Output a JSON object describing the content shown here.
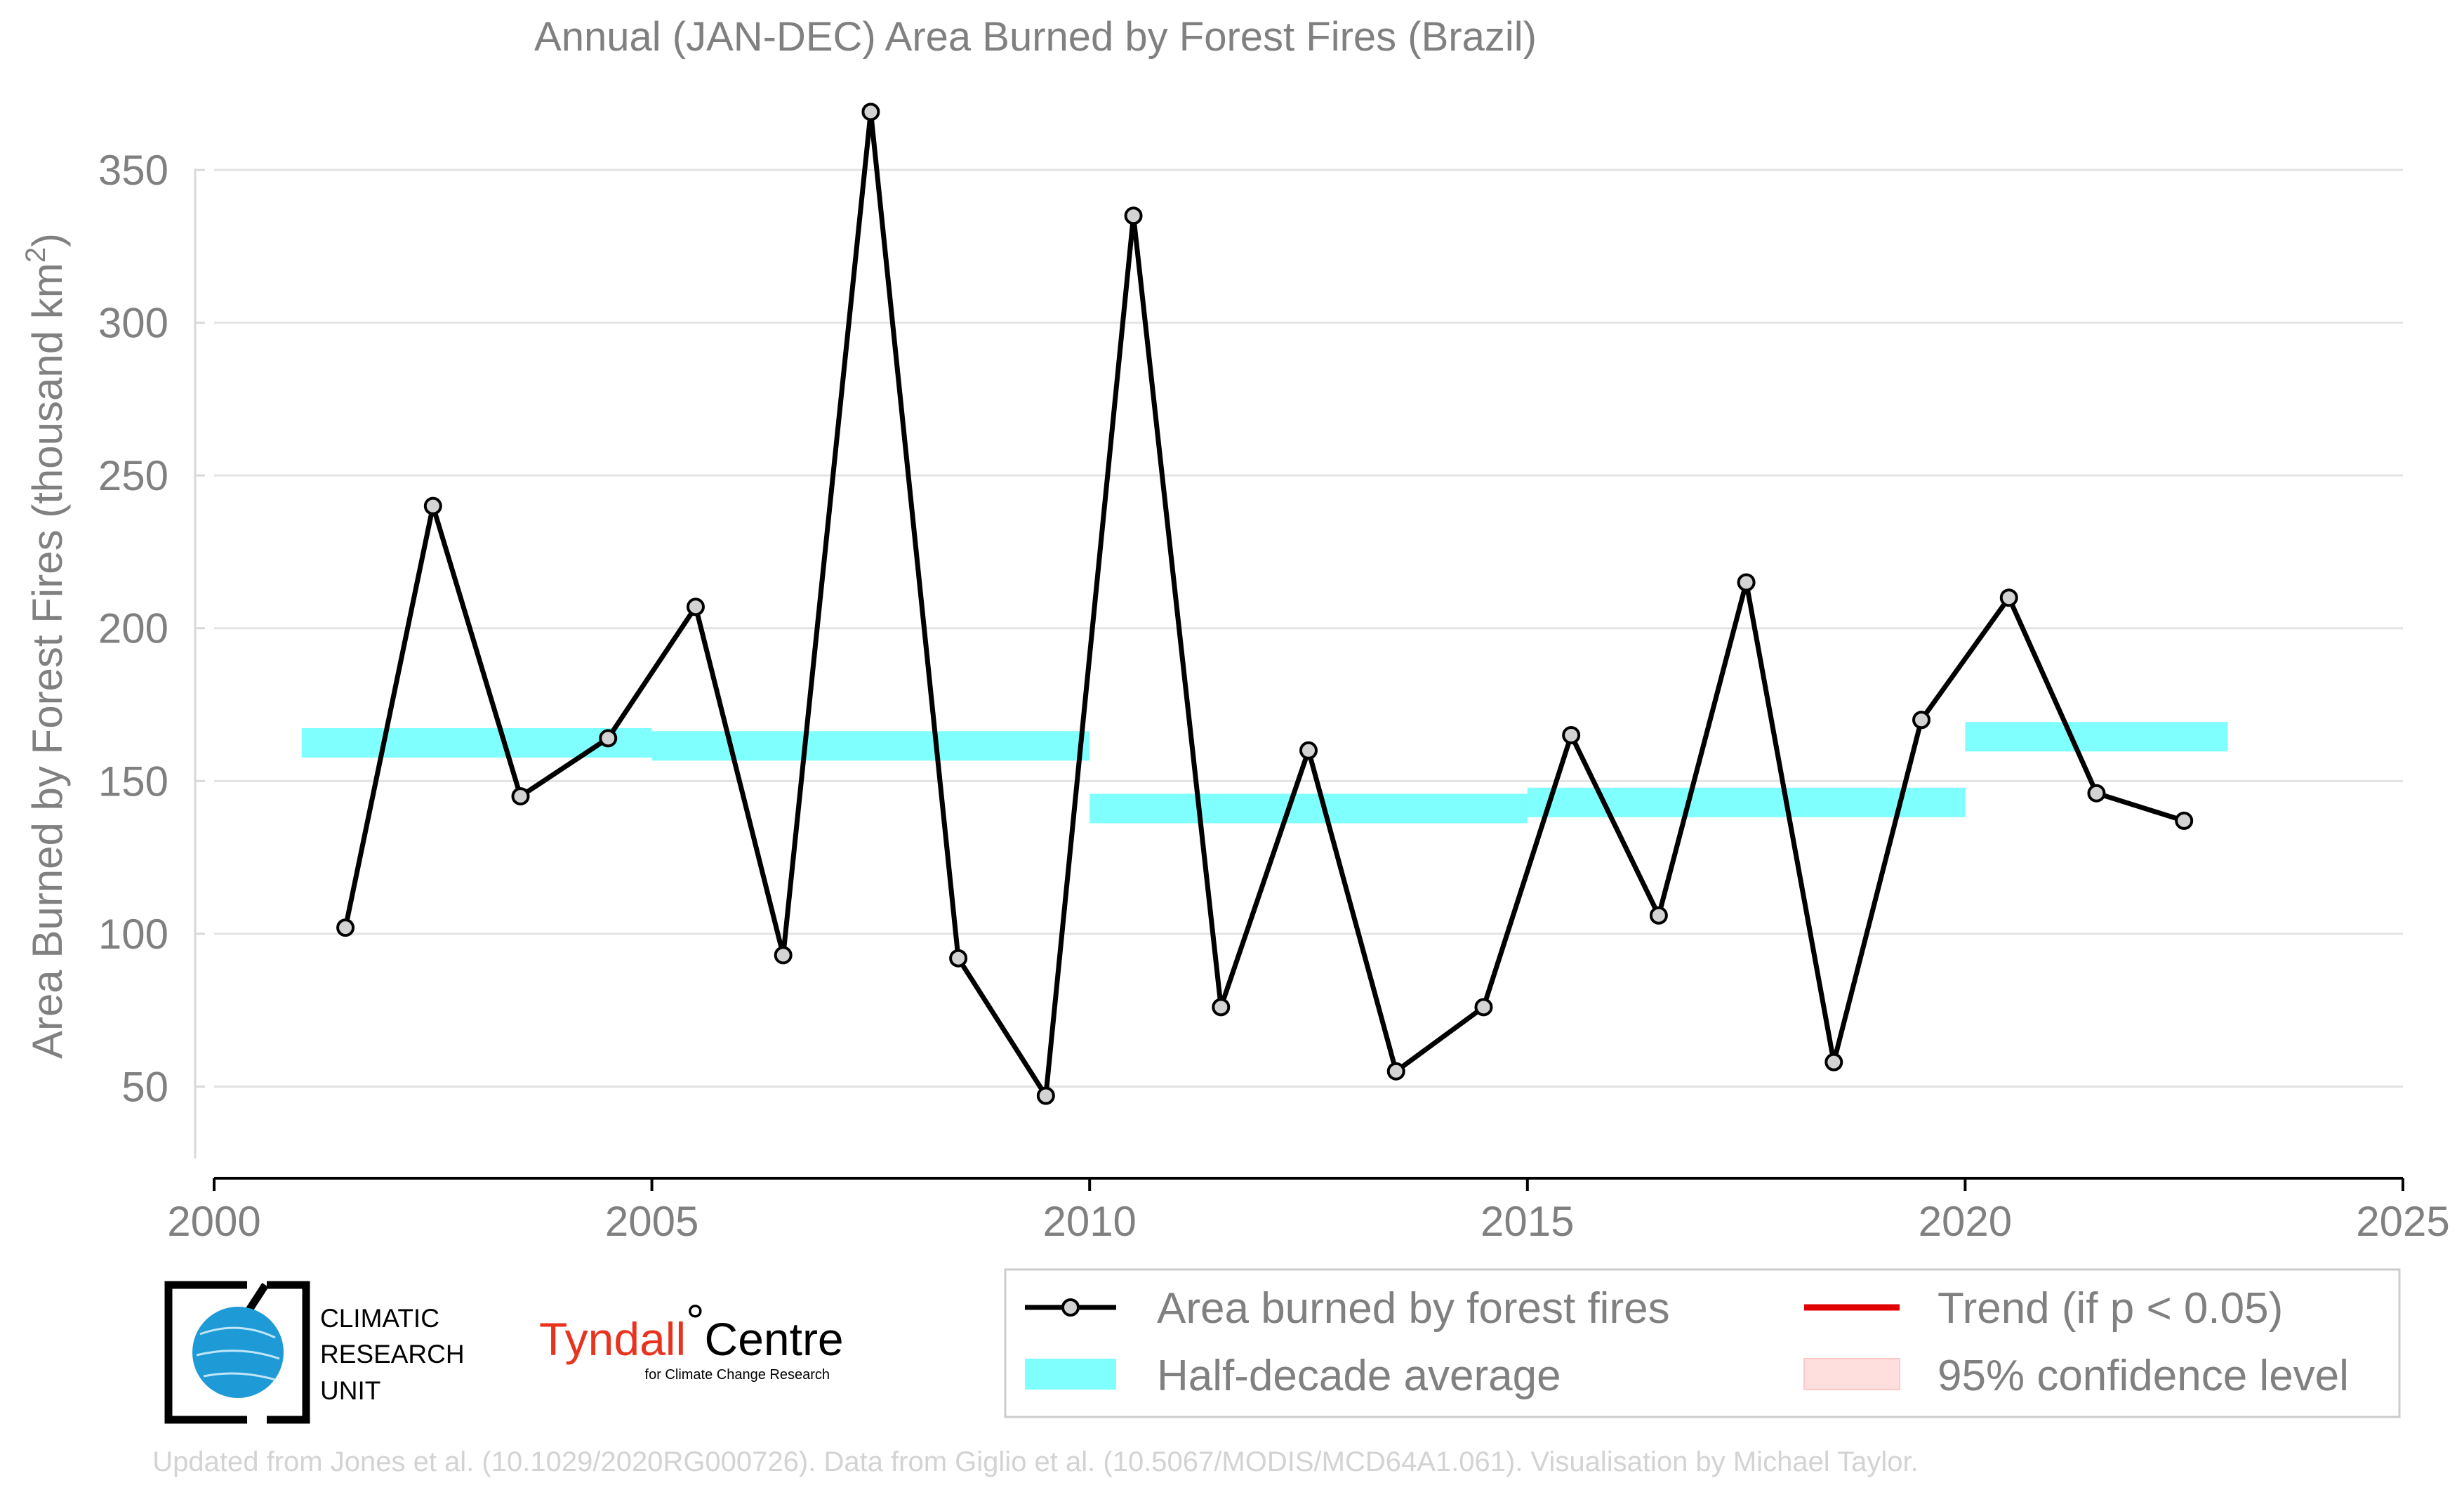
{
  "chart_data": {
    "type": "line",
    "title": "Annual (JAN-DEC) Area Burned by Forest Fires (Brazil)",
    "ylabel": "Area Burned by Forest Fires (thousand km",
    "ylabel_sup": "2",
    "ylabel_close": ")",
    "xlim": [
      2000,
      2025
    ],
    "ylim": [
      20,
      370
    ],
    "grid": true,
    "x_ticks": [
      2000,
      2005,
      2010,
      2015,
      2020,
      2025
    ],
    "y_ticks": [
      50,
      100,
      150,
      200,
      250,
      300,
      350
    ],
    "series": [
      {
        "name": "Area burned by forest fires",
        "color": "#000000",
        "x": [
          2001.5,
          2002.5,
          2003.5,
          2004.5,
          2005.5,
          2006.5,
          2007.5,
          2008.5,
          2009.5,
          2010.5,
          2011.5,
          2012.5,
          2013.5,
          2014.5,
          2015.5,
          2016.5,
          2017.5,
          2018.5,
          2019.5,
          2020.5,
          2021.5,
          2022.5
        ],
        "values": [
          102,
          240,
          145,
          164,
          207,
          93,
          369,
          92,
          47,
          335,
          76,
          160,
          55,
          76,
          165,
          106,
          215,
          58,
          170,
          210,
          146,
          137
        ]
      }
    ],
    "half_decade_average": {
      "name": "Half-decade average",
      "color": "#7ffffd",
      "segments": [
        {
          "x0": 2001,
          "x1": 2005,
          "value": 162.5
        },
        {
          "x0": 2005,
          "x1": 2010,
          "value": 161.5
        },
        {
          "x0": 2010,
          "x1": 2015,
          "value": 141
        },
        {
          "x0": 2015,
          "x1": 2020,
          "value": 143
        },
        {
          "x0": 2020,
          "x1": 2023,
          "value": 164.5
        }
      ]
    },
    "legend": {
      "placement": "bottom-right",
      "entries": [
        {
          "label": "Area burned by forest fires"
        },
        {
          "label": "Trend (if p < 0.05)",
          "color": "#e00000"
        },
        {
          "label": "Half-decade average",
          "color": "#7ffffd"
        },
        {
          "label": "95% confidence level",
          "color": "#ffdede"
        }
      ]
    },
    "footer": "Updated from Jones et al. (10.1029/2020RG000726). Data from Giglio et al. (10.5067/MODIS/MCD64A1.061). Visualisation by Michael Taylor."
  },
  "logos": {
    "cru_lines": [
      "CLIMATIC",
      "RESEARCH",
      "UNIT"
    ],
    "tyndall_red": "Tyndall",
    "tyndall_deg": "°",
    "tyndall_black": "Centre",
    "tyndall_sub": "for Climate Change Research"
  }
}
